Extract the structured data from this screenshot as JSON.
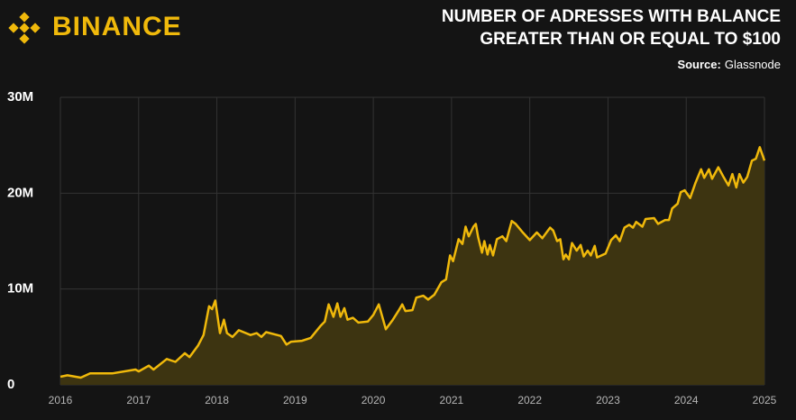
{
  "brand": "BINANCE",
  "chart_data": {
    "type": "area",
    "title": [
      "NUMBER OF ADRESSES WITH BALANCE",
      "GREATER THAN OR EQUAL TO $100"
    ],
    "source_label": "Source:",
    "source": "Glassnode",
    "color": "#f0b90b",
    "fill": "#3d3411",
    "grid": true,
    "xlim": [
      2016,
      2025
    ],
    "xticks": [
      2016,
      2017,
      2018,
      2019,
      2020,
      2021,
      2022,
      2023,
      2024,
      2025
    ],
    "ylim": [
      0,
      30000000
    ],
    "yticks": [
      0,
      {
        "value": 10000000,
        "label": "10M"
      },
      {
        "value": 20000000,
        "label": "20M"
      },
      {
        "value": 30000000,
        "label": "30M"
      }
    ],
    "x": [
      2016.0,
      2016.09,
      2016.26,
      2016.38,
      2016.67,
      2016.96,
      2017.0,
      2017.13,
      2017.19,
      2017.36,
      2017.47,
      2017.59,
      2017.65,
      2017.76,
      2017.83,
      2017.9,
      2017.94,
      2017.98,
      2018.04,
      2018.09,
      2018.13,
      2018.2,
      2018.28,
      2018.43,
      2018.51,
      2018.57,
      2018.63,
      2018.82,
      2018.89,
      2018.95,
      2019.09,
      2019.2,
      2019.33,
      2019.38,
      2019.43,
      2019.49,
      2019.54,
      2019.58,
      2019.63,
      2019.67,
      2019.74,
      2019.81,
      2019.93,
      2020.0,
      2020.07,
      2020.16,
      2020.25,
      2020.32,
      2020.37,
      2020.41,
      2020.5,
      2020.55,
      2020.64,
      2020.7,
      2020.78,
      2020.87,
      2020.93,
      2020.98,
      2021.02,
      2021.09,
      2021.14,
      2021.18,
      2021.22,
      2021.28,
      2021.31,
      2021.34,
      2021.39,
      2021.42,
      2021.46,
      2021.49,
      2021.53,
      2021.58,
      2021.65,
      2021.7,
      2021.77,
      2021.82,
      2021.91,
      2022.0,
      2022.09,
      2022.16,
      2022.26,
      2022.3,
      2022.35,
      2022.39,
      2022.43,
      2022.46,
      2022.5,
      2022.54,
      2022.6,
      2022.65,
      2022.69,
      2022.74,
      2022.78,
      2022.83,
      2022.86,
      2022.97,
      2023.04,
      2023.1,
      2023.15,
      2023.21,
      2023.27,
      2023.32,
      2023.36,
      2023.44,
      2023.48,
      2023.59,
      2023.64,
      2023.73,
      2023.78,
      2023.82,
      2023.89,
      2023.93,
      2023.98,
      2024.05,
      2024.12,
      2024.19,
      2024.23,
      2024.29,
      2024.33,
      2024.41,
      2024.47,
      2024.54,
      2024.59,
      2024.64,
      2024.68,
      2024.73,
      2024.78,
      2024.84,
      2024.89,
      2024.94,
      2025.0
    ],
    "values": [
      850000,
      1000000,
      750000,
      1200000,
      1200000,
      1600000,
      1400000,
      2000000,
      1600000,
      2700000,
      2400000,
      3300000,
      2900000,
      4100000,
      5200000,
      8200000,
      7900000,
      8800000,
      5400000,
      6800000,
      5400000,
      5000000,
      5700000,
      5200000,
      5400000,
      5000000,
      5500000,
      5100000,
      4200000,
      4500000,
      4600000,
      4900000,
      6200000,
      6600000,
      8400000,
      7100000,
      8500000,
      7100000,
      8000000,
      6800000,
      7000000,
      6500000,
      6600000,
      7300000,
      8400000,
      5800000,
      6800000,
      7700000,
      8400000,
      7700000,
      7800000,
      9100000,
      9300000,
      8900000,
      9400000,
      10700000,
      11000000,
      13500000,
      12900000,
      15200000,
      14700000,
      16500000,
      15500000,
      16500000,
      16800000,
      15400000,
      13800000,
      15000000,
      13600000,
      14600000,
      13500000,
      15200000,
      15500000,
      15000000,
      17100000,
      16800000,
      15900000,
      15100000,
      15900000,
      15300000,
      16400000,
      16100000,
      15000000,
      15200000,
      13100000,
      13600000,
      13100000,
      14800000,
      14000000,
      14600000,
      13400000,
      14000000,
      13500000,
      14500000,
      13300000,
      13700000,
      15100000,
      15600000,
      15000000,
      16400000,
      16700000,
      16400000,
      17000000,
      16500000,
      17300000,
      17400000,
      16800000,
      17200000,
      17200000,
      18400000,
      18900000,
      20100000,
      20300000,
      19500000,
      21100000,
      22500000,
      21600000,
      22500000,
      21500000,
      22700000,
      21800000,
      20800000,
      22000000,
      20600000,
      22000000,
      21100000,
      21700000,
      23400000,
      23600000,
      24800000,
      23400000
    ]
  }
}
